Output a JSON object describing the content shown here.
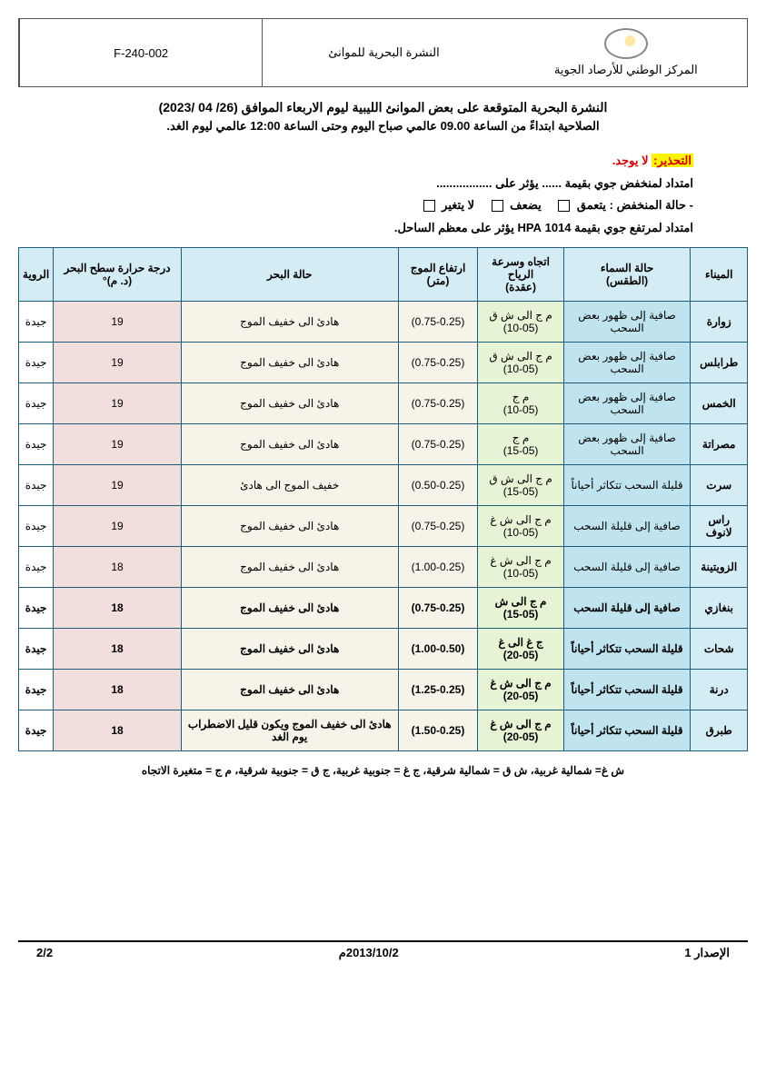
{
  "header": {
    "org": "المركز الوطني للأرصاد الجوية",
    "title": "النشرة البحرية للموانئ",
    "code": "F-240-002"
  },
  "doc": {
    "title": "النشرة البحرية المتوقعة على بعض الموانئ الليبية ليوم الاربعاء الموافق (26/ 04 /2023)",
    "sub": "الصلاحية ابتداءً من الساعة 09.00 عالمي صباح اليوم وحتى الساعة 12:00 عالمي ليوم الغد."
  },
  "warn": {
    "label": "التحذير:",
    "none": "لا يوجد.",
    "line1a": "امتداد لمنخفض جوي  بقيمة ...... يؤثر على .................",
    "line2_lead": "- حالة المنخفض :",
    "opt1": "يتعمق",
    "opt2": "يضعف",
    "opt3": "لا يتغير",
    "line3": "امتداد لمرتفع جوي بقيمة  1014 HPA يؤثر على معظم الساحل."
  },
  "table": {
    "columns": [
      "الميناء",
      "حالة السماء\n(الطقس)",
      "اتجاه وسرعة الرياح\n(عقدة)",
      "ارتفاع الموج (متر)",
      "حالة البحر",
      "درجة حرارة سطح البحر (د. م)°",
      "الروية"
    ],
    "boldRows": [
      7,
      8,
      9,
      10
    ],
    "rows": [
      [
        "زوارة",
        "صافية إلى ظهور بعض السحب",
        "م ج الى ش ق\n(10-05)",
        "(0.75-0.25)",
        "هادئ الى خفيف الموج",
        "19",
        "جيدة"
      ],
      [
        "طرابلس",
        "صافية إلى ظهور بعض السحب",
        "م ج الى ش ق\n(10-05)",
        "(0.75-0.25)",
        "هادئ الى خفيف الموج",
        "19",
        "جيدة"
      ],
      [
        "الخمس",
        "صافية إلى ظهور بعض السحب",
        "م ج\n(10-05)",
        "(0.75-0.25)",
        "هادئ الى خفيف الموج",
        "19",
        "جيدة"
      ],
      [
        "مصراتة",
        "صافية إلى ظهور بعض السحب",
        "م ج\n(15-05)",
        "(0.75-0.25)",
        "هادئ الى خفيف الموج",
        "19",
        "جيدة"
      ],
      [
        "سرت",
        "قليلة السحب تتكاثر أحياناً",
        "م ج الى ش ق\n(15-05)",
        "(0.50-0.25)",
        "خفيف الموج الى هادئ",
        "19",
        "جيدة"
      ],
      [
        "راس لانوف",
        "صافية إلى قليلة السحب",
        "م ج الى ش غ\n(10-05)",
        "(0.75-0.25)",
        "هادئ الى خفيف الموج",
        "19",
        "جيدة"
      ],
      [
        "الزويتينة",
        "صافية إلى قليلة السحب",
        "م ج الى ش غ\n(10-05)",
        "(1.00-0.25)",
        "هادئ الى خفيف الموج",
        "18",
        "جيدة"
      ],
      [
        "بنغازي",
        "صافية إلى قليلة السحب",
        "م ج الى ش\n(15-05)",
        "(0.75-0.25)",
        "هادئ الى خفيف الموج",
        "18",
        "جيدة"
      ],
      [
        "شحات",
        "قليلة السحب تتكاثر أحياناً",
        "ج غ الى غ\n(20-05)",
        "(1.00-0.50)",
        "هادئ الى خفيف الموج",
        "18",
        "جيدة"
      ],
      [
        "درنة",
        "قليلة السحب تتكاثر أحياناً",
        "م ج الى ش غ\n(20-05)",
        "(1.25-0.25)",
        "هادئ الى خفيف الموج",
        "18",
        "جيدة"
      ],
      [
        "طبرق",
        "قليلة السحب تتكاثر أحياناً",
        "م ج الى ش غ\n(20-05)",
        "(1.50-0.25)",
        "هادئ الى خفيف الموج ويكون قليل الاضطراب يوم الغد",
        "18",
        "جيدة"
      ]
    ]
  },
  "legend": "ش غ= شمالية غربية، ش ق = شمالية شرقية، ج غ = جنوبية غربية، ج ق = جنوبية شرقية، م ج = متغيرة الاتجاه",
  "footer": {
    "issue": "الإصدار 1",
    "date": "2013/10/2م",
    "page": "2/2"
  }
}
